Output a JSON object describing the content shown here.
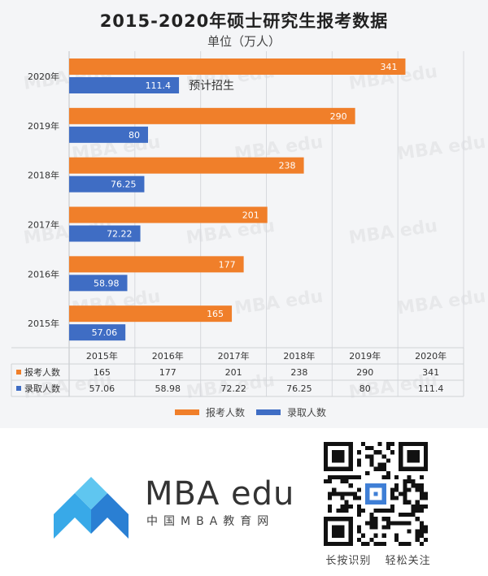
{
  "chart_data": {
    "type": "bar",
    "orientation": "horizontal",
    "title": "2015-2020年硕士研究生报考数据",
    "subtitle": "单位（万人）",
    "categories": [
      "2015年",
      "2016年",
      "2017年",
      "2018年",
      "2019年",
      "2020年"
    ],
    "series": [
      {
        "name": "报考人数",
        "values": [
          165,
          177,
          201,
          238,
          290,
          341
        ],
        "color": "#f07f2a"
      },
      {
        "name": "录取人数",
        "values": [
          57.06,
          58.98,
          72.22,
          76.25,
          80,
          111.4
        ],
        "color": "#3f6dc4"
      }
    ],
    "value_labels": {
      "报考人数": [
        "165",
        "177",
        "201",
        "238",
        "290",
        "341"
      ],
      "录取人数": [
        "57.06",
        "58.98",
        "72.22",
        "76.25",
        "80",
        "111.4"
      ]
    },
    "annotation": "预计招生",
    "xlim": [
      0,
      400
    ],
    "grid": true,
    "legend_position": "bottom",
    "table": {
      "columns": [
        "2015年",
        "2016年",
        "2017年",
        "2018年",
        "2019年",
        "2020年"
      ],
      "rows": [
        {
          "label": "报考人数",
          "values": [
            "165",
            "177",
            "201",
            "238",
            "290",
            "341"
          ]
        },
        {
          "label": "录取人数",
          "values": [
            "57.06",
            "58.98",
            "72.22",
            "76.25",
            "80",
            "111.4"
          ]
        }
      ]
    }
  },
  "watermark": "MBA edu",
  "branding": {
    "name": "MBA edu",
    "subtitle": "中国MBA教育网",
    "qr_caption_left": "长按识别",
    "qr_caption_right": "轻松关注"
  }
}
